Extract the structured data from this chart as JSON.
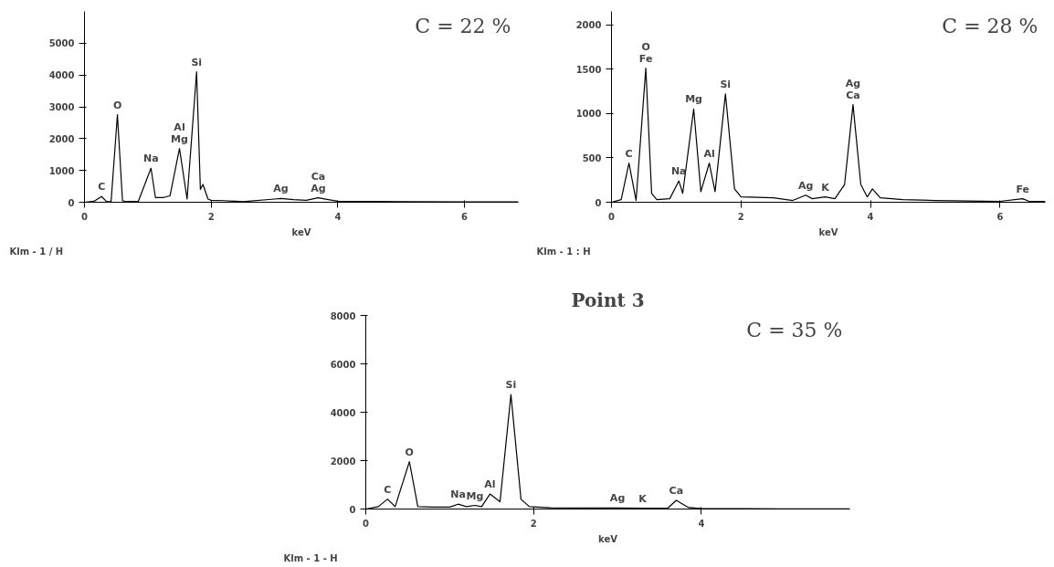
{
  "chart_data": [
    {
      "type": "line",
      "color": "#000000",
      "xlabel": "keV",
      "xlim": [
        0,
        6.85
      ],
      "ylim": [
        0,
        6000
      ],
      "xticks": [
        0,
        2,
        4,
        6
      ],
      "yticks": [
        0,
        1000,
        2000,
        3000,
        4000,
        5000
      ],
      "grid": false,
      "x": [
        0,
        0.15,
        0.27,
        0.35,
        0.42,
        0.52,
        0.6,
        0.65,
        0.85,
        1.05,
        1.12,
        1.25,
        1.35,
        1.5,
        1.62,
        1.77,
        1.83,
        1.87,
        1.95,
        2.0,
        2.2,
        2.5,
        3.0,
        3.1,
        3.3,
        3.5,
        3.69,
        3.85,
        4.0,
        5.0,
        6.85
      ],
      "values": [
        0,
        30,
        180,
        20,
        20,
        2750,
        50,
        20,
        30,
        1070,
        150,
        150,
        200,
        1690,
        100,
        4100,
        400,
        560,
        100,
        60,
        50,
        20,
        100,
        120,
        80,
        60,
        140,
        80,
        30,
        20,
        10
      ],
      "annotations": [
        "C = 22 %",
        "Klm - 1 / H",
        {
          "text": "C",
          "x": 0.27,
          "y": 180
        },
        {
          "text": "O",
          "x": 0.52,
          "y": 2750
        },
        {
          "text": "Na",
          "x": 1.05,
          "y": 1070
        },
        {
          "text": "Mg",
          "x": 1.5,
          "y": 1690
        },
        {
          "text": "Al",
          "x": 1.5,
          "y": 1690
        },
        {
          "text": "Si",
          "x": 1.77,
          "y": 4100
        },
        {
          "text": "Ag",
          "x": 3.1,
          "y": 120
        },
        {
          "text": "Ag",
          "x": 3.69,
          "y": 140
        },
        {
          "text": "Ca",
          "x": 3.69,
          "y": 140
        }
      ]
    },
    {
      "type": "line",
      "color": "#000000",
      "xlabel": "keV",
      "xlim": [
        0,
        6.7
      ],
      "ylim": [
        0,
        2150
      ],
      "xticks": [
        0,
        2,
        4,
        6
      ],
      "yticks": [
        0,
        500,
        1000,
        1500,
        2000
      ],
      "grid": false,
      "x": [
        0,
        0.15,
        0.27,
        0.38,
        0.53,
        0.62,
        0.7,
        0.9,
        1.04,
        1.1,
        1.27,
        1.38,
        1.51,
        1.6,
        1.76,
        1.9,
        2.0,
        2.5,
        2.8,
        3.0,
        3.1,
        3.3,
        3.45,
        3.6,
        3.73,
        3.85,
        3.95,
        4.03,
        4.15,
        4.5,
        5.0,
        6.0,
        6.35,
        6.45,
        6.7
      ],
      "values": [
        0,
        30,
        440,
        20,
        1510,
        100,
        30,
        40,
        240,
        100,
        1050,
        120,
        440,
        120,
        1220,
        150,
        60,
        50,
        20,
        80,
        40,
        60,
        40,
        200,
        1100,
        200,
        60,
        150,
        50,
        30,
        20,
        10,
        40,
        10,
        10
      ],
      "annotations": [
        "C = 28 %",
        "Klm - 1 : H",
        {
          "text": "C",
          "x": 0.27,
          "y": 440
        },
        {
          "text": "Fe",
          "x": 0.53,
          "y": 1510
        },
        {
          "text": "O",
          "x": 0.53,
          "y": 1510
        },
        {
          "text": "Na",
          "x": 1.04,
          "y": 240
        },
        {
          "text": "Mg",
          "x": 1.27,
          "y": 1050
        },
        {
          "text": "Al",
          "x": 1.51,
          "y": 440
        },
        {
          "text": "Si",
          "x": 1.76,
          "y": 1220
        },
        {
          "text": "Ag",
          "x": 3.0,
          "y": 80
        },
        {
          "text": "K",
          "x": 3.3,
          "y": 60
        },
        {
          "text": "Ca",
          "x": 3.73,
          "y": 1100
        },
        {
          "text": "Ag",
          "x": 3.73,
          "y": 1100
        },
        {
          "text": "Fe",
          "x": 6.35,
          "y": 40
        }
      ]
    },
    {
      "type": "line",
      "color": "#000000",
      "title": "Point 3",
      "xlabel": "keV",
      "xlim": [
        0,
        5.77
      ],
      "ylim": [
        0,
        8000
      ],
      "xticks": [
        0,
        2,
        4
      ],
      "yticks": [
        0,
        2000,
        4000,
        6000,
        8000
      ],
      "grid": false,
      "x": [
        0,
        0.15,
        0.26,
        0.35,
        0.52,
        0.62,
        0.8,
        1.0,
        1.1,
        1.2,
        1.3,
        1.38,
        1.48,
        1.6,
        1.73,
        1.85,
        1.95,
        2.2,
        3.0,
        3.3,
        3.6,
        3.7,
        3.85,
        4.0,
        5.0,
        5.77
      ],
      "values": [
        0,
        100,
        410,
        100,
        1960,
        100,
        80,
        80,
        200,
        100,
        150,
        100,
        620,
        300,
        4730,
        400,
        100,
        50,
        40,
        30,
        40,
        360,
        60,
        20,
        10,
        10
      ],
      "annotations": [
        "C = 35 %",
        "Klm - 1 - H",
        {
          "text": "C",
          "x": 0.26,
          "y": 410
        },
        {
          "text": "O",
          "x": 0.52,
          "y": 1960
        },
        {
          "text": "Na",
          "x": 1.1,
          "y": 200
        },
        {
          "text": "Mg",
          "x": 1.3,
          "y": 150
        },
        {
          "text": "Al",
          "x": 1.48,
          "y": 620
        },
        {
          "text": "Si",
          "x": 1.73,
          "y": 4730
        },
        {
          "text": "Ag",
          "x": 3.0,
          "y": 40
        },
        {
          "text": "K",
          "x": 3.3,
          "y": 30
        },
        {
          "text": "Ca",
          "x": 3.7,
          "y": 360
        }
      ]
    }
  ]
}
